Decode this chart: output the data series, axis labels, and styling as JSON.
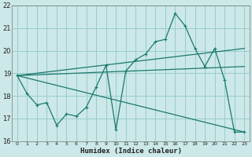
{
  "xlabel": "Humidex (Indice chaleur)",
  "bg_color": "#cce8e8",
  "grid_color": "#99cccc",
  "line_color": "#1a7a6e",
  "xlim": [
    -0.5,
    23.5
  ],
  "ylim": [
    16,
    22
  ],
  "xticks": [
    0,
    1,
    2,
    3,
    4,
    5,
    6,
    7,
    8,
    9,
    10,
    11,
    12,
    13,
    14,
    15,
    16,
    17,
    18,
    19,
    20,
    21,
    22,
    23
  ],
  "yticks": [
    16,
    17,
    18,
    19,
    20,
    21,
    22
  ],
  "line1_x": [
    0,
    1,
    2,
    3,
    4,
    5,
    6,
    7,
    8,
    9,
    10,
    11,
    12,
    13,
    14,
    15,
    16,
    17,
    18,
    19,
    20,
    21,
    22,
    23
  ],
  "line1_y": [
    18.9,
    18.1,
    17.6,
    17.7,
    16.7,
    17.2,
    17.1,
    17.5,
    18.4,
    19.35,
    16.5,
    19.1,
    19.6,
    19.85,
    20.4,
    20.5,
    21.65,
    21.1,
    20.1,
    19.3,
    20.1,
    18.7,
    16.4,
    16.4
  ],
  "line2_x": [
    0,
    23
  ],
  "line2_y": [
    18.9,
    16.4
  ],
  "line3_x": [
    0,
    23
  ],
  "line3_y": [
    18.9,
    19.3
  ],
  "line4_x": [
    0,
    23
  ],
  "line4_y": [
    18.9,
    20.1
  ],
  "marker": "+"
}
